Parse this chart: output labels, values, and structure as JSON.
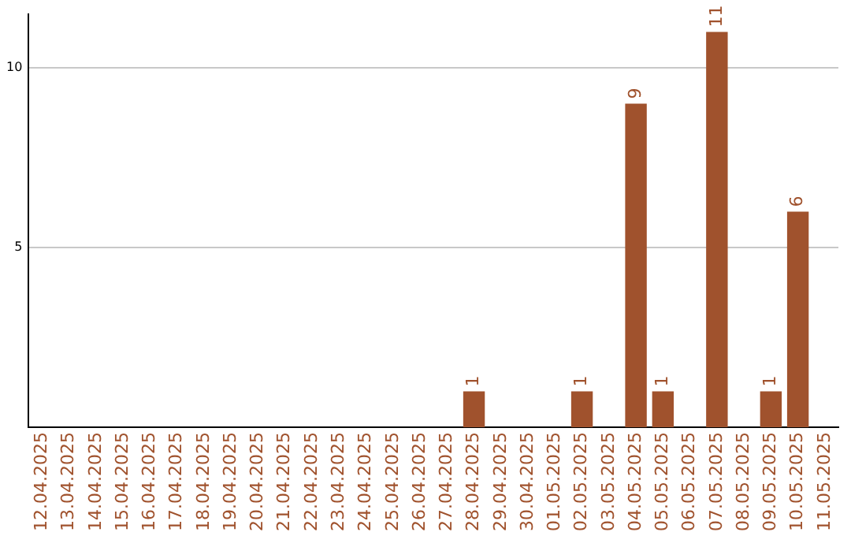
{
  "chart_data": {
    "type": "bar",
    "categories": [
      "12.04.2025",
      "13.04.2025",
      "14.04.2025",
      "15.04.2025",
      "16.04.2025",
      "17.04.2025",
      "18.04.2025",
      "19.04.2025",
      "20.04.2025",
      "21.04.2025",
      "22.04.2025",
      "23.04.2025",
      "24.04.2025",
      "25.04.2025",
      "26.04.2025",
      "27.04.2025",
      "28.04.2025",
      "29.04.2025",
      "30.04.2025",
      "01.05.2025",
      "02.05.2025",
      "03.05.2025",
      "04.05.2025",
      "05.05.2025",
      "06.05.2025",
      "07.05.2025",
      "08.05.2025",
      "09.05.2025",
      "10.05.2025",
      "11.05.2025"
    ],
    "values": [
      0,
      0,
      0,
      0,
      0,
      0,
      0,
      0,
      0,
      0,
      0,
      0,
      0,
      0,
      0,
      0,
      1,
      0,
      0,
      0,
      1,
      0,
      9,
      1,
      0,
      11,
      0,
      1,
      6,
      0
    ],
    "value_labels": [
      null,
      null,
      null,
      null,
      null,
      null,
      null,
      null,
      null,
      null,
      null,
      null,
      null,
      null,
      null,
      null,
      "1",
      null,
      null,
      null,
      "1",
      null,
      "9",
      "1",
      null,
      "11",
      null,
      "1",
      "6",
      null
    ],
    "color": "#a0522d",
    "ylim": [
      0,
      11.5
    ],
    "yticks": [
      5,
      10
    ],
    "grid": "y",
    "legend": false
  }
}
